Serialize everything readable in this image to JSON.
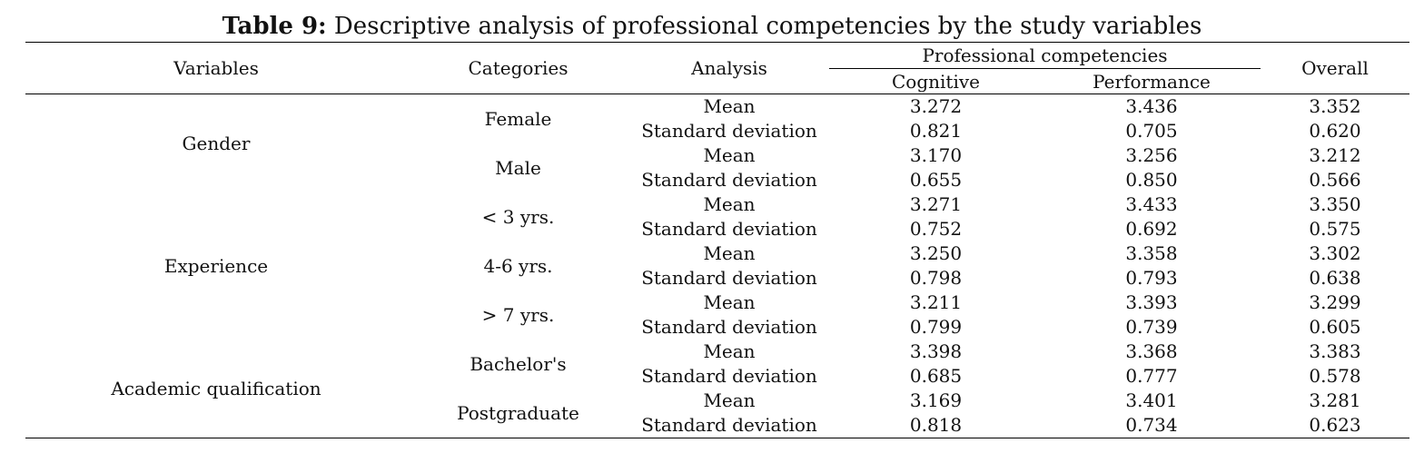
{
  "caption": {
    "label": "Table 9:",
    "text": "Descriptive analysis of professional competencies by the study variables"
  },
  "headers": {
    "variables": "Variables",
    "categories": "Categories",
    "analysis": "Analysis",
    "group": "Professional competencies",
    "cognitive": "Cognitive",
    "performance": "Performance",
    "overall": "Overall"
  },
  "variables": [
    {
      "name": "Gender",
      "categories": [
        {
          "name": "Female",
          "rows": [
            {
              "analysis": "Mean",
              "cognitive": "3.272",
              "performance": "3.436",
              "overall": "3.352"
            },
            {
              "analysis": "Standard deviation",
              "cognitive": "0.821",
              "performance": "0.705",
              "overall": "0.620"
            }
          ]
        },
        {
          "name": "Male",
          "rows": [
            {
              "analysis": "Mean",
              "cognitive": "3.170",
              "performance": "3.256",
              "overall": "3.212"
            },
            {
              "analysis": "Standard deviation",
              "cognitive": "0.655",
              "performance": "0.850",
              "overall": "0.566"
            }
          ]
        }
      ]
    },
    {
      "name": "Experience",
      "categories": [
        {
          "name": "< 3 yrs.",
          "rows": [
            {
              "analysis": "Mean",
              "cognitive": "3.271",
              "performance": "3.433",
              "overall": "3.350"
            },
            {
              "analysis": "Standard deviation",
              "cognitive": "0.752",
              "performance": "0.692",
              "overall": "0.575"
            }
          ]
        },
        {
          "name": "4-6 yrs.",
          "rows": [
            {
              "analysis": "Mean",
              "cognitive": "3.250",
              "performance": "3.358",
              "overall": "3.302"
            },
            {
              "analysis": "Standard deviation",
              "cognitive": "0.798",
              "performance": "0.793",
              "overall": "0.638"
            }
          ]
        },
        {
          "name": "> 7 yrs.",
          "rows": [
            {
              "analysis": "Mean",
              "cognitive": "3.211",
              "performance": "3.393",
              "overall": "3.299"
            },
            {
              "analysis": "Standard deviation",
              "cognitive": "0.799",
              "performance": "0.739",
              "overall": "0.605"
            }
          ]
        }
      ]
    },
    {
      "name": "Academic qualification",
      "categories": [
        {
          "name": "Bachelor's",
          "rows": [
            {
              "analysis": "Mean",
              "cognitive": "3.398",
              "performance": "3.368",
              "overall": "3.383"
            },
            {
              "analysis": "Standard deviation",
              "cognitive": "0.685",
              "performance": "0.777",
              "overall": "0.578"
            }
          ]
        },
        {
          "name": "Postgraduate",
          "rows": [
            {
              "analysis": "Mean",
              "cognitive": "3.169",
              "performance": "3.401",
              "overall": "3.281"
            },
            {
              "analysis": "Standard deviation",
              "cognitive": "0.818",
              "performance": "0.734",
              "overall": "0.623"
            }
          ]
        }
      ]
    }
  ]
}
